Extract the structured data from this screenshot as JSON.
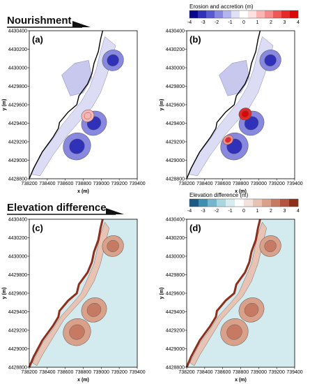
{
  "section_titles": {
    "top": "Nourishment",
    "bottom": "Elevation difference"
  },
  "colors": {
    "erosion_scale": [
      "#08088a",
      "#3030b8",
      "#5a5ad0",
      "#8888e0",
      "#b4b4ee",
      "#e0e0f6",
      "#ffffff",
      "#fde0e0",
      "#fab4b4",
      "#f58a8a",
      "#ef5858",
      "#e62a2a",
      "#d80808"
    ],
    "elevation_scale": [
      "#1b5a82",
      "#3f8fb0",
      "#74b6cc",
      "#a9d6df",
      "#d6ecef",
      "#ffffff",
      "#f3e2dc",
      "#e8c3b3",
      "#d9a08a",
      "#c77a63",
      "#b3543e",
      "#8e2f1c"
    ],
    "sea": "#d3ebee",
    "coast_dark": "#8e2f1c"
  },
  "chart_data": [
    {
      "panel": "(a)",
      "type": "heatmap",
      "title": "",
      "xlabel": "x (m)",
      "ylabel": "y (m)",
      "xticks": [
        738200,
        738400,
        738600,
        738800,
        739000,
        739200,
        739400
      ],
      "yticks": [
        4428800,
        4429000,
        4429200,
        4429400,
        4429600,
        4429800,
        4430000,
        4430200,
        4430400
      ],
      "xlim": [
        738200,
        739400
      ],
      "ylim": [
        4428800,
        4430400
      ],
      "colorbar": {
        "title": "Erosion and accretion (m)",
        "ticks": [
          -4,
          -3,
          -2,
          -1,
          0,
          1,
          2,
          3,
          4
        ]
      },
      "shoals": [
        {
          "x": 739130,
          "y": 4430080,
          "value": -2
        },
        {
          "x": 738920,
          "y": 4429400,
          "value": -2
        },
        {
          "x": 738730,
          "y": 4429150,
          "value": -2
        },
        {
          "x": 738850,
          "y": 4429480,
          "value": 1
        }
      ]
    },
    {
      "panel": "(b)",
      "type": "heatmap",
      "title": "",
      "xlabel": "x (m)",
      "ylabel": "y (m)",
      "xticks": [
        738200,
        738400,
        738600,
        738800,
        739000,
        739200,
        739400
      ],
      "yticks": [
        4428800,
        4429000,
        4429200,
        4429400,
        4429600,
        4429800,
        4430000,
        4430200,
        4430400
      ],
      "xlim": [
        738200,
        739400
      ],
      "ylim": [
        4428800,
        4430400
      ],
      "colorbar": {
        "title": "Erosion and accretion (m)",
        "ticks": [
          -4,
          -3,
          -2,
          -1,
          0,
          1,
          2,
          3,
          4
        ]
      },
      "shoals": [
        {
          "x": 739130,
          "y": 4430080,
          "value": -2
        },
        {
          "x": 738920,
          "y": 4429400,
          "value": -2
        },
        {
          "x": 738730,
          "y": 4429150,
          "value": -2
        },
        {
          "x": 738850,
          "y": 4429500,
          "value": 3
        },
        {
          "x": 738660,
          "y": 4429220,
          "value": 2
        }
      ]
    },
    {
      "panel": "(c)",
      "type": "heatmap",
      "title": "",
      "xlabel": "x (m)",
      "ylabel": "y (m)",
      "xticks": [
        738200,
        738400,
        738600,
        738800,
        739000,
        739200,
        739400
      ],
      "yticks": [
        4428800,
        4429000,
        4429200,
        4429400,
        4429600,
        4429800,
        4430000,
        4430200,
        4430400
      ],
      "xlim": [
        738200,
        739400
      ],
      "ylim": [
        4428800,
        4430400
      ],
      "colorbar": {
        "title": "Elevation difference (m)",
        "ticks": [
          -4,
          -3,
          -2,
          -1,
          0,
          1,
          2,
          3,
          4
        ]
      },
      "shoals": [
        {
          "x": 739130,
          "y": 4430110,
          "value": 1.5
        },
        {
          "x": 738920,
          "y": 4429420,
          "value": 1.5
        },
        {
          "x": 738730,
          "y": 4429180,
          "value": 1.5
        }
      ]
    },
    {
      "panel": "(d)",
      "type": "heatmap",
      "title": "",
      "xlabel": "x (m)",
      "ylabel": "y (m)",
      "xticks": [
        738200,
        738400,
        738600,
        738800,
        739000,
        739200,
        739400
      ],
      "yticks": [
        4428800,
        4429000,
        4429200,
        4429400,
        4429600,
        4429800,
        4430000,
        4430200,
        4430400
      ],
      "xlim": [
        738200,
        739400
      ],
      "ylim": [
        4428800,
        4430400
      ],
      "colorbar": {
        "title": "Elevation difference (m)",
        "ticks": [
          -4,
          -3,
          -2,
          -1,
          0,
          1,
          2,
          3,
          4
        ]
      },
      "shoals": [
        {
          "x": 739130,
          "y": 4430110,
          "value": 1.5
        },
        {
          "x": 738920,
          "y": 4429420,
          "value": 1.5
        },
        {
          "x": 738730,
          "y": 4429180,
          "value": 1.5
        }
      ]
    }
  ]
}
